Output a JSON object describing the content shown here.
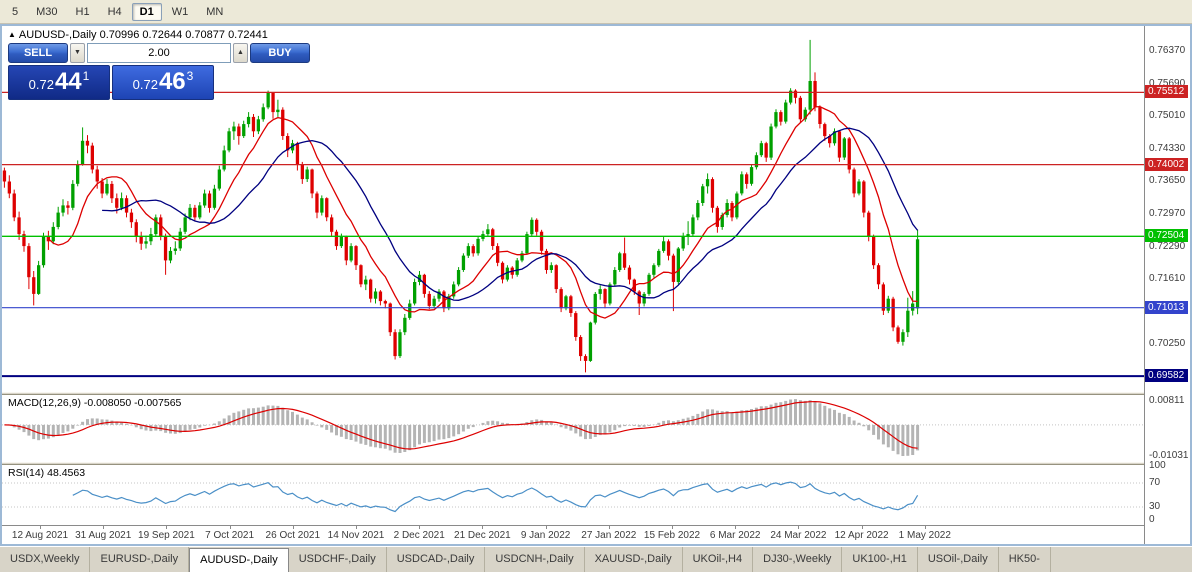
{
  "toolbar": {
    "timeframes": [
      "5",
      "M30",
      "H1",
      "H4",
      "D1",
      "W1",
      "MN"
    ],
    "active": "D1"
  },
  "header": {
    "symbol_marker": "▲",
    "title": "AUDUSD-,Daily",
    "ohlc": "0.70996 0.72644 0.70877 0.72441"
  },
  "trade_panel": {
    "sell_label": "SELL",
    "buy_label": "BUY",
    "volume": "2.00",
    "bid": {
      "head": "0.72",
      "big": "44",
      "pip": "1"
    },
    "ask": {
      "head": "0.72",
      "big": "46",
      "pip": "3"
    }
  },
  "macd_panel": {
    "name": "MACD(12,26,9)",
    "values": "-0.008050 -0.007565"
  },
  "rsi_panel": {
    "name": "RSI(14)",
    "value": "48.4563"
  },
  "tabs": {
    "active": "AUDUSD-,Daily",
    "items": [
      "USDX,Weekly",
      "EURUSD-,Daily",
      "AUDUSD-,Daily",
      "USDCHF-,Daily",
      "USDCAD-,Daily",
      "USDCNH-,Daily",
      "XAUUSD-,Daily",
      "UKOil-,H4",
      "DJ30-,Weekly",
      "UK100-,H1",
      "USOil-,Daily",
      "HK50-"
    ]
  },
  "chart_data": {
    "type": "candlestick",
    "symbol": "AUDUSD-",
    "timeframe": "Daily",
    "current_ohlc": {
      "open": 0.70996,
      "high": 0.72644,
      "low": 0.70877,
      "close": 0.72441
    },
    "ylim": [
      0.6925,
      0.769
    ],
    "y_ticks": [
      0.7637,
      0.7569,
      0.7501,
      0.7433,
      0.7365,
      0.7297,
      0.7229,
      0.7161,
      0.7093,
      0.7025
    ],
    "levels": [
      {
        "price": 0.75512,
        "label": "0.75512",
        "color": "#cc2222",
        "width": 1.2
      },
      {
        "price": 0.74002,
        "label": "0.74002",
        "color": "#cc2222",
        "width": 1.2
      },
      {
        "price": 0.72504,
        "label": "0.72504",
        "color": "#00c000",
        "width": 1.4
      },
      {
        "price": 0.71013,
        "label": "0.71013",
        "color": "#3344cc",
        "width": 1.2
      },
      {
        "price": 0.69582,
        "label": "0.69582",
        "color": "#000080",
        "width": 2
      }
    ],
    "x_labels": [
      "12 Aug 2021",
      "31 Aug 2021",
      "19 Sep 2021",
      "7 Oct 2021",
      "26 Oct 2021",
      "14 Nov 2021",
      "2 Dec 2021",
      "21 Dec 2021",
      "9 Jan 2022",
      "27 Jan 2022",
      "15 Feb 2022",
      "6 Mar 2022",
      "24 Mar 2022",
      "12 Apr 2022",
      "1 May 2022"
    ],
    "colors": {
      "up": "#00A000",
      "down": "#DE0000",
      "ma_fast": "#DD0000",
      "ma_slow": "#000080",
      "macd_hist": "#b4b4b4",
      "macd_signal": "#DD0000",
      "rsi_line": "#4a8fc7"
    },
    "overlays": [
      {
        "name": "ma-fast",
        "type": "sma",
        "period": 10
      },
      {
        "name": "ma-slow",
        "type": "sma",
        "period": 21
      }
    ],
    "indicators": [
      {
        "name": "MACD",
        "params": "12,26,9",
        "values": [
          -0.00805,
          -0.007565
        ],
        "scale": [
          0.00811,
          -0.01031
        ]
      },
      {
        "name": "RSI",
        "params": "14",
        "value": 48.4563,
        "scale": [
          100,
          70,
          30,
          0
        ]
      }
    ],
    "candles": [
      [
        0.7388,
        0.7394,
        0.7352,
        0.7365
      ],
      [
        0.7365,
        0.7378,
        0.733,
        0.734
      ],
      [
        0.734,
        0.7348,
        0.7282,
        0.729
      ],
      [
        0.729,
        0.7302,
        0.7243,
        0.7255
      ],
      [
        0.7255,
        0.7262,
        0.7218,
        0.723
      ],
      [
        0.723,
        0.7236,
        0.714,
        0.7165
      ],
      [
        0.7165,
        0.7178,
        0.7106,
        0.713
      ],
      [
        0.713,
        0.7199,
        0.7128,
        0.719
      ],
      [
        0.719,
        0.7258,
        0.7185,
        0.725
      ],
      [
        0.725,
        0.7262,
        0.7222,
        0.724
      ],
      [
        0.724,
        0.728,
        0.7234,
        0.727
      ],
      [
        0.727,
        0.7312,
        0.7265,
        0.73
      ],
      [
        0.73,
        0.7328,
        0.7292,
        0.7315
      ],
      [
        0.7315,
        0.7324,
        0.7296,
        0.731
      ],
      [
        0.731,
        0.7368,
        0.7305,
        0.736
      ],
      [
        0.736,
        0.7409,
        0.7355,
        0.74
      ],
      [
        0.74,
        0.7478,
        0.7398,
        0.745
      ],
      [
        0.745,
        0.7462,
        0.7424,
        0.744
      ],
      [
        0.744,
        0.7446,
        0.7382,
        0.739
      ],
      [
        0.739,
        0.7398,
        0.735,
        0.7365
      ],
      [
        0.7365,
        0.7372,
        0.733,
        0.734
      ],
      [
        0.734,
        0.737,
        0.7336,
        0.736
      ],
      [
        0.736,
        0.7366,
        0.732,
        0.733
      ],
      [
        0.733,
        0.734,
        0.7298,
        0.731
      ],
      [
        0.731,
        0.7342,
        0.7305,
        0.733
      ],
      [
        0.733,
        0.7336,
        0.729,
        0.73
      ],
      [
        0.73,
        0.7308,
        0.7268,
        0.728
      ],
      [
        0.728,
        0.7286,
        0.7238,
        0.725
      ],
      [
        0.725,
        0.726,
        0.7222,
        0.7235
      ],
      [
        0.7235,
        0.7252,
        0.7225,
        0.724
      ],
      [
        0.724,
        0.7268,
        0.7232,
        0.7255
      ],
      [
        0.7255,
        0.7296,
        0.725,
        0.729
      ],
      [
        0.729,
        0.7296,
        0.7242,
        0.725
      ],
      [
        0.725,
        0.7256,
        0.717,
        0.72
      ],
      [
        0.72,
        0.7228,
        0.7194,
        0.722
      ],
      [
        0.722,
        0.724,
        0.7212,
        0.7225
      ],
      [
        0.7225,
        0.7268,
        0.722,
        0.726
      ],
      [
        0.726,
        0.7298,
        0.7255,
        0.729
      ],
      [
        0.729,
        0.7318,
        0.7284,
        0.731
      ],
      [
        0.731,
        0.7316,
        0.7282,
        0.729
      ],
      [
        0.729,
        0.7322,
        0.7286,
        0.7315
      ],
      [
        0.7315,
        0.7348,
        0.731,
        0.734
      ],
      [
        0.734,
        0.7346,
        0.73,
        0.731
      ],
      [
        0.731,
        0.7358,
        0.7306,
        0.735
      ],
      [
        0.735,
        0.7398,
        0.7346,
        0.739
      ],
      [
        0.739,
        0.744,
        0.7386,
        0.743
      ],
      [
        0.743,
        0.7477,
        0.7426,
        0.747
      ],
      [
        0.747,
        0.749,
        0.7452,
        0.748
      ],
      [
        0.748,
        0.7486,
        0.7442,
        0.746
      ],
      [
        0.746,
        0.7492,
        0.7456,
        0.7485
      ],
      [
        0.7485,
        0.751,
        0.7478,
        0.75
      ],
      [
        0.75,
        0.7506,
        0.7458,
        0.747
      ],
      [
        0.747,
        0.7502,
        0.7464,
        0.7495
      ],
      [
        0.7495,
        0.7528,
        0.749,
        0.752
      ],
      [
        0.752,
        0.7555,
        0.7516,
        0.755
      ],
      [
        0.755,
        0.7552,
        0.7496,
        0.751
      ],
      [
        0.751,
        0.7536,
        0.75,
        0.7515
      ],
      [
        0.7515,
        0.752,
        0.7452,
        0.746
      ],
      [
        0.746,
        0.7466,
        0.7416,
        0.743
      ],
      [
        0.743,
        0.7452,
        0.7424,
        0.7445
      ],
      [
        0.7445,
        0.7448,
        0.7388,
        0.74
      ],
      [
        0.74,
        0.7406,
        0.736,
        0.737
      ],
      [
        0.737,
        0.7396,
        0.7364,
        0.739
      ],
      [
        0.739,
        0.7392,
        0.733,
        0.734
      ],
      [
        0.734,
        0.7344,
        0.7288,
        0.73
      ],
      [
        0.73,
        0.7336,
        0.7294,
        0.733
      ],
      [
        0.733,
        0.7332,
        0.7282,
        0.729
      ],
      [
        0.729,
        0.7296,
        0.725,
        0.726
      ],
      [
        0.726,
        0.7264,
        0.7222,
        0.723
      ],
      [
        0.723,
        0.7256,
        0.7226,
        0.725
      ],
      [
        0.725,
        0.7252,
        0.719,
        0.72
      ],
      [
        0.72,
        0.7236,
        0.7196,
        0.723
      ],
      [
        0.723,
        0.7232,
        0.718,
        0.719
      ],
      [
        0.719,
        0.7192,
        0.7144,
        0.715
      ],
      [
        0.715,
        0.7168,
        0.7138,
        0.716
      ],
      [
        0.716,
        0.7162,
        0.7112,
        0.712
      ],
      [
        0.712,
        0.7142,
        0.711,
        0.7135
      ],
      [
        0.7135,
        0.7138,
        0.7106,
        0.7115
      ],
      [
        0.7115,
        0.7118,
        0.71,
        0.711
      ],
      [
        0.711,
        0.7112,
        0.7042,
        0.705
      ],
      [
        0.705,
        0.7056,
        0.6993,
        0.7
      ],
      [
        0.7,
        0.7056,
        0.6996,
        0.705
      ],
      [
        0.705,
        0.7088,
        0.7044,
        0.708
      ],
      [
        0.708,
        0.7118,
        0.7076,
        0.711
      ],
      [
        0.711,
        0.7162,
        0.7106,
        0.7155
      ],
      [
        0.7155,
        0.7178,
        0.7148,
        0.717
      ],
      [
        0.717,
        0.7172,
        0.7122,
        0.713
      ],
      [
        0.713,
        0.7136,
        0.7098,
        0.7105
      ],
      [
        0.7105,
        0.7126,
        0.71,
        0.712
      ],
      [
        0.712,
        0.714,
        0.7114,
        0.7135
      ],
      [
        0.7135,
        0.7138,
        0.7092,
        0.71
      ],
      [
        0.71,
        0.713,
        0.7096,
        0.7125
      ],
      [
        0.7125,
        0.7156,
        0.712,
        0.715
      ],
      [
        0.715,
        0.7186,
        0.7146,
        0.718
      ],
      [
        0.718,
        0.7215,
        0.7176,
        0.721
      ],
      [
        0.721,
        0.7236,
        0.7205,
        0.723
      ],
      [
        0.723,
        0.7234,
        0.7208,
        0.7215
      ],
      [
        0.7215,
        0.725,
        0.721,
        0.7245
      ],
      [
        0.7245,
        0.7262,
        0.724,
        0.7255
      ],
      [
        0.7255,
        0.7276,
        0.725,
        0.7265
      ],
      [
        0.7265,
        0.7268,
        0.7222,
        0.723
      ],
      [
        0.723,
        0.7236,
        0.7188,
        0.7195
      ],
      [
        0.7195,
        0.7198,
        0.7152,
        0.716
      ],
      [
        0.716,
        0.719,
        0.7156,
        0.7185
      ],
      [
        0.7185,
        0.7188,
        0.7162,
        0.717
      ],
      [
        0.717,
        0.7205,
        0.7166,
        0.72
      ],
      [
        0.72,
        0.722,
        0.7196,
        0.7215
      ],
      [
        0.7215,
        0.726,
        0.7212,
        0.7255
      ],
      [
        0.7255,
        0.729,
        0.725,
        0.7285
      ],
      [
        0.7285,
        0.7288,
        0.7252,
        0.726
      ],
      [
        0.726,
        0.7264,
        0.7212,
        0.722
      ],
      [
        0.722,
        0.7224,
        0.7172,
        0.718
      ],
      [
        0.718,
        0.7196,
        0.7174,
        0.719
      ],
      [
        0.719,
        0.7192,
        0.7132,
        0.714
      ],
      [
        0.714,
        0.7144,
        0.7092,
        0.71
      ],
      [
        0.71,
        0.7128,
        0.7096,
        0.7125
      ],
      [
        0.7125,
        0.7128,
        0.7082,
        0.709
      ],
      [
        0.709,
        0.7094,
        0.7032,
        0.704
      ],
      [
        0.704,
        0.7044,
        0.699,
        0.7
      ],
      [
        0.7,
        0.7004,
        0.6966,
        0.699
      ],
      [
        0.699,
        0.7072,
        0.6988,
        0.707
      ],
      [
        0.707,
        0.7134,
        0.7066,
        0.713
      ],
      [
        0.713,
        0.7148,
        0.7118,
        0.714
      ],
      [
        0.714,
        0.7142,
        0.71,
        0.711
      ],
      [
        0.711,
        0.7154,
        0.7106,
        0.715
      ],
      [
        0.715,
        0.7186,
        0.7146,
        0.718
      ],
      [
        0.718,
        0.7218,
        0.7176,
        0.7215
      ],
      [
        0.7215,
        0.7248,
        0.718,
        0.7185
      ],
      [
        0.7185,
        0.719,
        0.715,
        0.716
      ],
      [
        0.716,
        0.7162,
        0.7128,
        0.7135
      ],
      [
        0.7135,
        0.7138,
        0.7086,
        0.711
      ],
      [
        0.711,
        0.7134,
        0.7104,
        0.713
      ],
      [
        0.713,
        0.7174,
        0.7126,
        0.717
      ],
      [
        0.717,
        0.7194,
        0.7164,
        0.719
      ],
      [
        0.719,
        0.7224,
        0.7186,
        0.722
      ],
      [
        0.722,
        0.725,
        0.7216,
        0.724
      ],
      [
        0.724,
        0.7244,
        0.72,
        0.721
      ],
      [
        0.721,
        0.7214,
        0.7094,
        0.7155
      ],
      [
        0.7155,
        0.7228,
        0.715,
        0.7225
      ],
      [
        0.7225,
        0.7258,
        0.722,
        0.725
      ],
      [
        0.725,
        0.7282,
        0.7232,
        0.7255
      ],
      [
        0.7255,
        0.7296,
        0.725,
        0.729
      ],
      [
        0.729,
        0.7326,
        0.7284,
        0.732
      ],
      [
        0.732,
        0.736,
        0.7314,
        0.7355
      ],
      [
        0.7355,
        0.7382,
        0.734,
        0.737
      ],
      [
        0.737,
        0.7374,
        0.73,
        0.731
      ],
      [
        0.731,
        0.7314,
        0.7258,
        0.727
      ],
      [
        0.727,
        0.73,
        0.7264,
        0.7295
      ],
      [
        0.7295,
        0.7328,
        0.729,
        0.732
      ],
      [
        0.732,
        0.7324,
        0.7282,
        0.729
      ],
      [
        0.729,
        0.7344,
        0.7286,
        0.734
      ],
      [
        0.734,
        0.7386,
        0.7336,
        0.738
      ],
      [
        0.738,
        0.7384,
        0.735,
        0.736
      ],
      [
        0.736,
        0.74,
        0.7356,
        0.7395
      ],
      [
        0.7395,
        0.7426,
        0.739,
        0.742
      ],
      [
        0.742,
        0.745,
        0.7416,
        0.7445
      ],
      [
        0.7445,
        0.7448,
        0.7406,
        0.7415
      ],
      [
        0.7415,
        0.7486,
        0.741,
        0.748
      ],
      [
        0.748,
        0.7516,
        0.7476,
        0.751
      ],
      [
        0.751,
        0.7514,
        0.7482,
        0.749
      ],
      [
        0.749,
        0.7536,
        0.7486,
        0.753
      ],
      [
        0.753,
        0.756,
        0.7526,
        0.7555
      ],
      [
        0.7555,
        0.7558,
        0.7528,
        0.754
      ],
      [
        0.754,
        0.7544,
        0.7488,
        0.7495
      ],
      [
        0.7495,
        0.752,
        0.749,
        0.7515
      ],
      [
        0.7515,
        0.7661,
        0.7505,
        0.7575
      ],
      [
        0.7575,
        0.7593,
        0.7512,
        0.752
      ],
      [
        0.752,
        0.7524,
        0.7476,
        0.7485
      ],
      [
        0.7485,
        0.7488,
        0.745,
        0.746
      ],
      [
        0.746,
        0.7464,
        0.7436,
        0.7445
      ],
      [
        0.7445,
        0.7476,
        0.744,
        0.747
      ],
      [
        0.747,
        0.7472,
        0.7406,
        0.7415
      ],
      [
        0.7415,
        0.7458,
        0.741,
        0.7455
      ],
      [
        0.7455,
        0.7458,
        0.7382,
        0.739
      ],
      [
        0.739,
        0.7394,
        0.7332,
        0.734
      ],
      [
        0.734,
        0.737,
        0.7336,
        0.7365
      ],
      [
        0.7365,
        0.7368,
        0.729,
        0.73
      ],
      [
        0.73,
        0.7304,
        0.724,
        0.725
      ],
      [
        0.725,
        0.7254,
        0.7182,
        0.719
      ],
      [
        0.719,
        0.7194,
        0.714,
        0.715
      ],
      [
        0.715,
        0.7154,
        0.7086,
        0.7095
      ],
      [
        0.7095,
        0.7126,
        0.709,
        0.712
      ],
      [
        0.712,
        0.7124,
        0.7052,
        0.706
      ],
      [
        0.706,
        0.7064,
        0.7026,
        0.703
      ],
      [
        0.703,
        0.7056,
        0.7022,
        0.705
      ],
      [
        0.705,
        0.7122,
        0.704,
        0.7095
      ],
      [
        0.7095,
        0.7136,
        0.7085,
        0.711
      ],
      [
        0.70996,
        0.72644,
        0.70877,
        0.72441
      ]
    ]
  }
}
